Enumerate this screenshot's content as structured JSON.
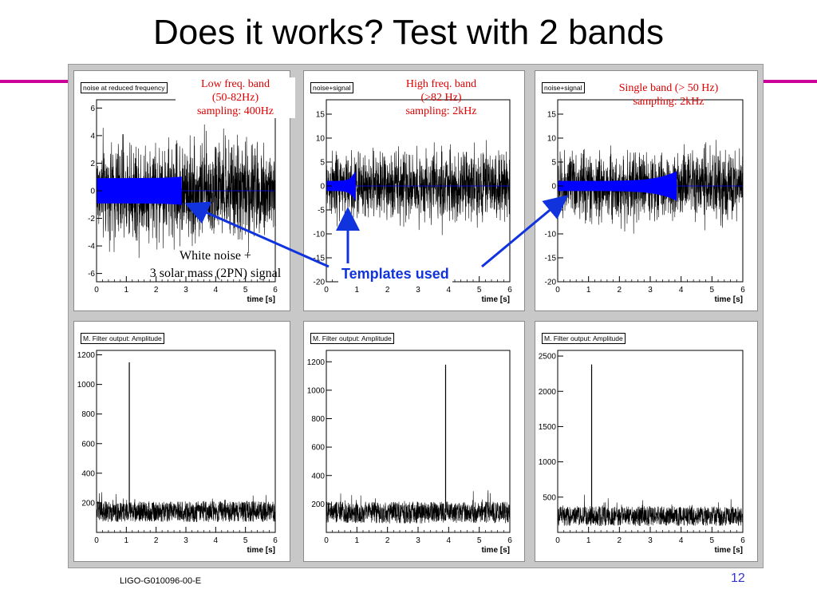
{
  "slide": {
    "title": "Does it works? Test with 2 bands",
    "footer": "LIGO-G010096-00-E",
    "page_number": "12",
    "accent_color": "#cc0099"
  },
  "annotations": {
    "low_band": [
      "Low freq. band",
      "(50-82Hz)",
      "sampling: 400Hz"
    ],
    "high_band": [
      "High freq. band",
      "(>82 Hz)",
      "sampling: 2kHz"
    ],
    "single_band": [
      "Single band (> 50 Hz)",
      "sampling: 2kHz"
    ],
    "signal_note": [
      "White noise +",
      "3 solar mass (2PN) signal"
    ],
    "templates_label": "Templates used",
    "red_color": "#dd0000",
    "blue_color": "#1133dd"
  },
  "chart_data": [
    {
      "type": "line",
      "title": "noise at reduced frequency",
      "xlabel": "time [s]",
      "xlim": [
        0,
        6
      ],
      "ylim": [
        -6.6,
        6.6
      ],
      "x_ticks": [
        0,
        1,
        2,
        3,
        4,
        5,
        6
      ],
      "y_ticks": [
        -6,
        -4,
        -2,
        0,
        2,
        4,
        6
      ],
      "series": [
        {
          "role": "noise",
          "color": "#000000",
          "amplitude": 2.5,
          "spread": 6.2,
          "x_range": [
            0,
            6
          ]
        },
        {
          "role": "chirp",
          "color": "#0000ff",
          "x_range": [
            0,
            2.85
          ],
          "amplitude_start": 0.9,
          "amplitude_end": 1.0
        }
      ]
    },
    {
      "type": "line",
      "title": "noise+signal",
      "xlabel": "time [s]",
      "xlim": [
        0,
        6
      ],
      "ylim": [
        -20,
        18
      ],
      "x_ticks": [
        0,
        1,
        2,
        3,
        4,
        5,
        6
      ],
      "y_ticks": [
        -20,
        -15,
        -10,
        -5,
        0,
        5,
        10,
        15
      ],
      "series": [
        {
          "role": "noise",
          "color": "#000000",
          "amplitude": 5.0,
          "spread": 15.5,
          "x_range": [
            0,
            6
          ]
        },
        {
          "role": "chirp",
          "color": "#0000ff",
          "x_range": [
            0,
            0.95
          ],
          "amplitude_start": 1.0,
          "amplitude_end": 3.0
        }
      ]
    },
    {
      "type": "line",
      "title": "noise+signal",
      "xlabel": "time [s]",
      "xlim": [
        0,
        6
      ],
      "ylim": [
        -20,
        18
      ],
      "x_ticks": [
        0,
        1,
        2,
        3,
        4,
        5,
        6
      ],
      "y_ticks": [
        -20,
        -15,
        -10,
        -5,
        0,
        5,
        10,
        15
      ],
      "series": [
        {
          "role": "noise",
          "color": "#000000",
          "amplitude": 5.0,
          "spread": 15.5,
          "x_range": [
            0,
            6
          ]
        },
        {
          "role": "chirp",
          "color": "#0000ff",
          "x_range": [
            0,
            3.85
          ],
          "amplitude_start": 1.0,
          "amplitude_end": 3.0
        }
      ]
    },
    {
      "type": "line",
      "title": "M. Filter output: Amplitude",
      "xlabel": "time [s]",
      "xlim": [
        0,
        6
      ],
      "ylim": [
        0,
        1230
      ],
      "x_ticks": [
        0,
        1,
        2,
        3,
        4,
        5,
        6
      ],
      "y_ticks": [
        200,
        400,
        600,
        800,
        1000,
        1200
      ],
      "baseline": 140,
      "baseline_spread": 100,
      "peak": {
        "x": 1.1,
        "y": 1150
      }
    },
    {
      "type": "line",
      "title": "M. Filter output: Amplitude",
      "xlabel": "time [s]",
      "xlim": [
        0,
        6
      ],
      "ylim": [
        0,
        1280
      ],
      "x_ticks": [
        0,
        1,
        2,
        3,
        4,
        5,
        6
      ],
      "y_ticks": [
        200,
        400,
        600,
        800,
        1000,
        1200
      ],
      "baseline": 140,
      "baseline_spread": 110,
      "peak": {
        "x": 3.9,
        "y": 1180
      }
    },
    {
      "type": "line",
      "title": "M. Filter output: Amplitude",
      "xlabel": "time [s]",
      "xlim": [
        0,
        6
      ],
      "ylim": [
        0,
        2580
      ],
      "x_ticks": [
        0,
        1,
        2,
        3,
        4,
        5,
        6
      ],
      "y_ticks": [
        500,
        1000,
        1500,
        2000,
        2500
      ],
      "baseline": 230,
      "baseline_spread": 200,
      "peak": {
        "x": 1.1,
        "y": 2380
      }
    }
  ]
}
